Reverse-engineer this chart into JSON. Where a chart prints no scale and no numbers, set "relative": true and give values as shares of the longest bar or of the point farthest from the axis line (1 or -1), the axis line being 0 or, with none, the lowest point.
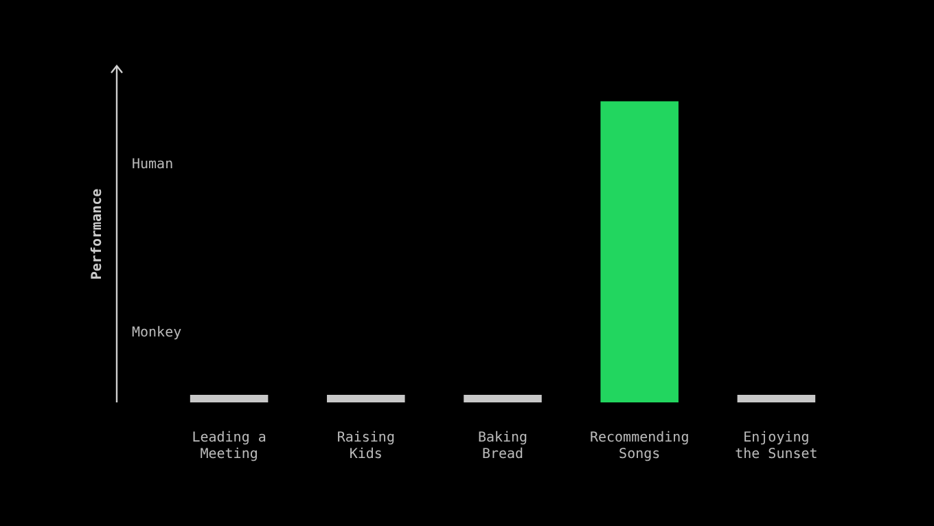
{
  "chart_data": {
    "type": "bar",
    "relative": true,
    "ylabel": "Performance",
    "categories": [
      "Leading a Meeting",
      "Raising Kids",
      "Baking Bread",
      "Recommending Songs",
      "Enjoying the Sunset"
    ],
    "values": [
      0.025,
      0.025,
      0.025,
      1,
      0.025
    ],
    "colors": [
      "#c8c8c8",
      "#c8c8c8",
      "#c8c8c8",
      "#22d65f",
      "#c8c8c8"
    ],
    "annotations": [
      "Human",
      "Monkey"
    ],
    "legend": false
  }
}
